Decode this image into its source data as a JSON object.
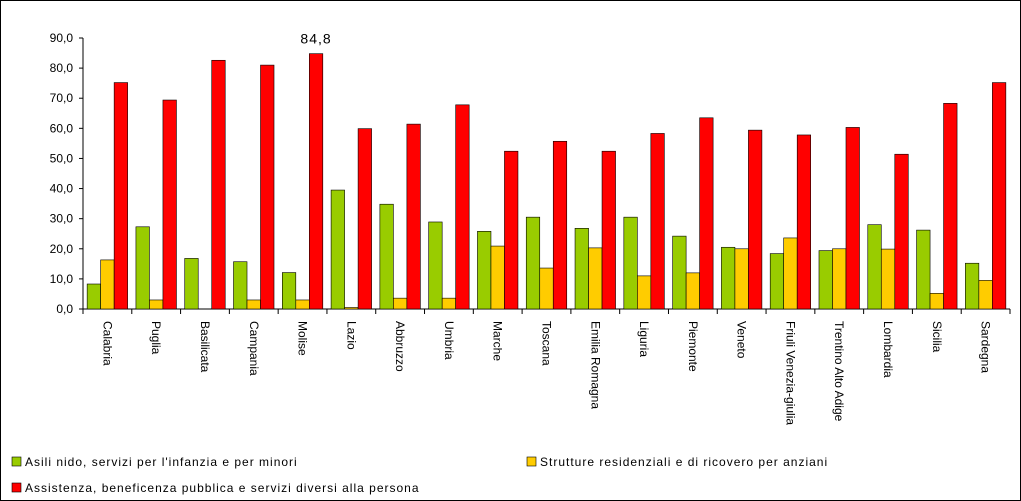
{
  "chart_data": {
    "type": "bar",
    "categories": [
      "Calabria",
      "Puglia",
      "Basilicata",
      "Campania",
      "Molise",
      "Lazio",
      "Abbruzzo",
      "Umbria",
      "Marche",
      "Toscana",
      "Emilia Romagna",
      "Liguria",
      "Piemonte",
      "Veneto",
      "Friuli Venezia-giulia",
      "Trentino Alto Adige",
      "Lombardia",
      "Sicilia",
      "Sardegna"
    ],
    "series": [
      {
        "name": "Asili nido, servizi per l'infanzia e per minori",
        "color": "#99cc00",
        "values": [
          8.3,
          27.3,
          16.8,
          15.7,
          12.1,
          39.5,
          34.8,
          28.9,
          25.8,
          30.5,
          26.8,
          30.5,
          24.2,
          20.5,
          18.4,
          19.4,
          28.0,
          26.2,
          15.2
        ]
      },
      {
        "name": "Strutture residenziali e di ricovero per anziani",
        "color": "#ffcc00",
        "values": [
          16.3,
          3.0,
          0,
          3.0,
          3.0,
          0.5,
          3.6,
          3.6,
          20.9,
          13.6,
          20.3,
          11.0,
          12.0,
          20.0,
          23.6,
          20.0,
          19.9,
          5.2,
          9.5
        ]
      },
      {
        "name": "Assistenza, beneficenza pubblica e servizi diversi alla persona",
        "color": "#ff0000",
        "values": [
          75.2,
          69.4,
          82.6,
          81.0,
          84.8,
          59.9,
          61.4,
          67.8,
          52.4,
          55.7,
          52.4,
          58.3,
          63.5,
          59.4,
          57.8,
          60.3,
          51.4,
          68.3,
          75.2
        ],
        "value_labels": [
          null,
          null,
          null,
          null,
          "84,8",
          null,
          null,
          null,
          null,
          null,
          null,
          null,
          null,
          null,
          null,
          null,
          null,
          null,
          null
        ]
      }
    ],
    "ylim": [
      0,
      90
    ],
    "yticks": [
      {
        "value": 0,
        "label": "0,0"
      },
      {
        "value": 10,
        "label": "10,0"
      },
      {
        "value": 20,
        "label": "20,0"
      },
      {
        "value": 30,
        "label": "30,0"
      },
      {
        "value": 40,
        "label": "40,0"
      },
      {
        "value": 50,
        "label": "50,0"
      },
      {
        "value": 60,
        "label": "60,0"
      },
      {
        "value": 70,
        "label": "70,0"
      },
      {
        "value": 80,
        "label": "80,0"
      },
      {
        "value": 90,
        "label": "90,0"
      }
    ],
    "grid": false
  }
}
